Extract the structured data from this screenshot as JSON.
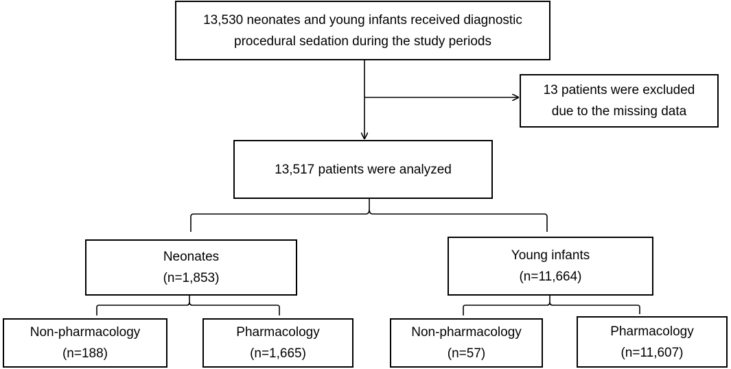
{
  "boxes": {
    "top": {
      "line1": "13,530 neonates and young infants received diagnostic",
      "line2": "procedural sedation during the study periods"
    },
    "excluded": {
      "line1": "13 patients were excluded",
      "line2": "due to the missing data"
    },
    "analyzed": {
      "line1": "13,517 patients were analyzed"
    },
    "neonates": {
      "line1": "Neonates",
      "line2": "(n=1,853)"
    },
    "young_infants": {
      "line1": "Young infants",
      "line2": "(n=11,664)"
    },
    "neonates_non_pharmacology": {
      "line1": "Non-pharmacology",
      "line2": "(n=188)"
    },
    "neonates_pharmacology": {
      "line1": "Pharmacology",
      "line2": "(n=1,665)"
    },
    "young_infants_non_pharmacology": {
      "line1": "Non-pharmacology",
      "line2": "(n=57)"
    },
    "young_infants_pharmacology": {
      "line1": "Pharmacology",
      "line2": "(n=11,607)"
    }
  },
  "colors": {
    "line": "#000000",
    "background": "#ffffff"
  }
}
